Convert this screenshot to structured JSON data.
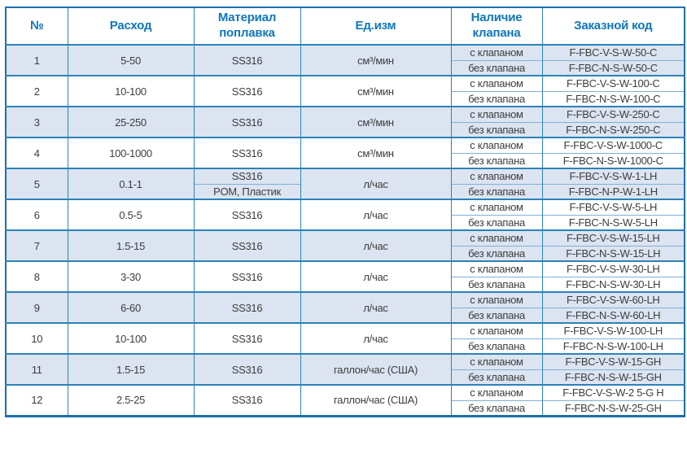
{
  "table": {
    "headers": {
      "num": "№",
      "flow": "Расход",
      "material": "Материал поплавка",
      "unit": "Ед.изм",
      "valve": "Наличие клапана",
      "code": "Заказной код"
    },
    "valve_with": "с клапаном",
    "valve_without": "без клапана",
    "rows": [
      {
        "num": "1",
        "flow": "5-50",
        "material": "SS316",
        "unit": "см³/мин",
        "code_with": "F-FBC-V-S-W-50-C",
        "code_without": "F-FBC-N-S-W-50-C"
      },
      {
        "num": "2",
        "flow": "10-100",
        "material": "SS316",
        "unit": "см³/мин",
        "code_with": "F-FBC-V-S-W-100-C",
        "code_without": "F-FBC-N-S-W-100-C"
      },
      {
        "num": "3",
        "flow": "25-250",
        "material": "SS316",
        "unit": "см³/мин",
        "code_with": "F-FBC-V-S-W-250-C",
        "code_without": "F-FBC-N-S-W-250-C"
      },
      {
        "num": "4",
        "flow": "100-1000",
        "material": "SS316",
        "unit": "см³/мин",
        "code_with": "F-FBC-V-S-W-1000-C",
        "code_without": "F-FBC-N-S-W-1000-C"
      },
      {
        "num": "5",
        "flow": "0.1-1",
        "material": "SS316",
        "material2": "POM, Пластик",
        "unit": "л/час",
        "code_with": "F-FBC-V-S-W-1-LH",
        "code_without": "F-FBC-N-P-W-1-LH"
      },
      {
        "num": "6",
        "flow": "0.5-5",
        "material": "SS316",
        "unit": "л/час",
        "code_with": "F-FBC-V-S-W-5-LH",
        "code_without": "F-FBC-N-S-W-5-LH"
      },
      {
        "num": "7",
        "flow": "1.5-15",
        "material": "SS316",
        "unit": "л/час",
        "code_with": "F-FBC-V-S-W-15-LH",
        "code_without": "F-FBC-N-S-W-15-LH"
      },
      {
        "num": "8",
        "flow": "3-30",
        "material": "SS316",
        "unit": "л/час",
        "code_with": "F-FBC-V-S-W-30-LH",
        "code_without": "F-FBC-N-S-W-30-LH"
      },
      {
        "num": "9",
        "flow": "6-60",
        "material": "SS316",
        "unit": "л/час",
        "code_with": "F-FBC-V-S-W-60-LH",
        "code_without": "F-FBC-N-S-W-60-LH"
      },
      {
        "num": "10",
        "flow": "10-100",
        "material": "SS316",
        "unit": "л/час",
        "code_with": "F-FBC-V-S-W-100-LH",
        "code_without": "F-FBC-N-S-W-100-LH"
      },
      {
        "num": "11",
        "flow": "1.5-15",
        "material": "SS316",
        "unit": "галлон/час (США)",
        "code_with": "F-FBC-V-S-W-15-GH",
        "code_without": "F-FBC-N-S-W-15-GH"
      },
      {
        "num": "12",
        "flow": "2.5-25",
        "material": "SS316",
        "unit": "галлон/час (США)",
        "code_with": "F-FBC-V-S-W-2 5-G H",
        "code_without": "F-FBC-N-S-W-25-GH"
      }
    ]
  },
  "colors": {
    "header_text": "#0f76bc",
    "border": "#2c82b8",
    "outer_border": "#1a70ad",
    "subrow_divider": "#7fb0d6",
    "row_shade": "#dce4f1",
    "cell_text": "#3d3d3d"
  }
}
